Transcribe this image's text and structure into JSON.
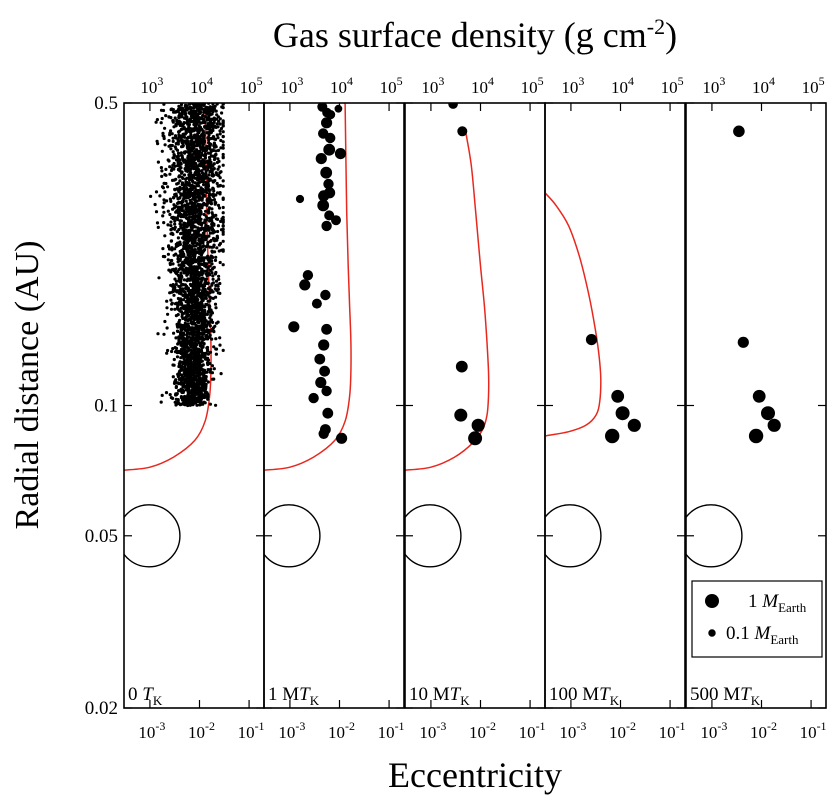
{
  "figure": {
    "top_title": "Gas surface density (g cm",
    "top_title_sup": "-2",
    "top_title_end": ")",
    "left_ylabel": "Radial distance (AU)",
    "bottom_xlabel": "Eccentricity"
  },
  "chart_data": {
    "type": "scatter",
    "y_axis": {
      "label": "Radial distance (AU)",
      "scale": "log",
      "range": [
        0.02,
        0.5
      ],
      "ticks": [
        {
          "value": 0.5,
          "label": "0.5"
        },
        {
          "value": 0.1,
          "label": "0.1"
        },
        {
          "value": 0.05,
          "label": "0.05"
        },
        {
          "value": 0.02,
          "label": "0.02"
        }
      ]
    },
    "x_axis_bottom": {
      "label": "Eccentricity",
      "scale": "log",
      "range": [
        0.0003,
        0.2
      ],
      "ticks": [
        {
          "value": 0.001,
          "base": "10",
          "exp": "-3"
        },
        {
          "value": 0.01,
          "base": "10",
          "exp": "-2"
        },
        {
          "value": 0.1,
          "base": "10",
          "exp": "-1"
        }
      ]
    },
    "x_axis_top": {
      "label": "Gas surface density (g cm^-2)",
      "scale": "log",
      "range": [
        300,
        200000
      ],
      "ticks": [
        {
          "value": 1000,
          "base": "10",
          "exp": "3"
        },
        {
          "value": 10000,
          "base": "10",
          "exp": "4"
        },
        {
          "value": 100000,
          "base": "10",
          "exp": "5"
        }
      ]
    },
    "legend": {
      "position": "bottom-right",
      "items": [
        {
          "name": "1 M",
          "sub": "Earth",
          "mass_earth": 1.0
        },
        {
          "name": "0.1 M",
          "sub": "Earth",
          "mass_earth": 0.1
        }
      ]
    },
    "star_marker": {
      "radius_au": 0.05,
      "center_e": 0.001
    },
    "panels": [
      {
        "label_pre": "0 ",
        "label_it": "T",
        "label_sub": "K",
        "gas_profile": {
          "color": "#e8281e",
          "sigma": [
            1000,
            3000,
            8000,
            13000,
            16000,
            17000,
            17000,
            16000,
            15000,
            14000,
            13000
          ],
          "r": [
            0.072,
            0.076,
            0.083,
            0.092,
            0.105,
            0.12,
            0.14,
            0.17,
            0.21,
            0.28,
            0.5
          ]
        },
        "cloud": {
          "r_min": 0.1,
          "r_max": 0.5,
          "e_center": 0.007,
          "e_spread_dex": 0.22,
          "mass_earth": 0.05,
          "count": 3200
        },
        "planets": []
      },
      {
        "label_pre": "1 M",
        "label_it": "T",
        "label_sub": "K",
        "gas_profile": {
          "color": "#e8281e",
          "sigma": [
            1000,
            3000,
            8000,
            13000,
            16000,
            17000,
            17000,
            16000,
            15000,
            14000,
            13000
          ],
          "r": [
            0.072,
            0.076,
            0.083,
            0.092,
            0.105,
            0.12,
            0.14,
            0.17,
            0.21,
            0.28,
            0.5
          ]
        },
        "planets": [
          {
            "e": 0.0045,
            "r": 0.49,
            "m": 0.35
          },
          {
            "e": 0.0056,
            "r": 0.475,
            "m": 0.3
          },
          {
            "e": 0.0066,
            "r": 0.47,
            "m": 0.25
          },
          {
            "e": 0.0095,
            "r": 0.485,
            "m": 0.12
          },
          {
            "e": 0.0055,
            "r": 0.45,
            "m": 0.5
          },
          {
            "e": 0.0047,
            "r": 0.425,
            "m": 0.4
          },
          {
            "e": 0.0065,
            "r": 0.415,
            "m": 0.4
          },
          {
            "e": 0.0062,
            "r": 0.39,
            "m": 0.6
          },
          {
            "e": 0.0105,
            "r": 0.382,
            "m": 0.5
          },
          {
            "e": 0.0043,
            "r": 0.372,
            "m": 0.5
          },
          {
            "e": 0.0054,
            "r": 0.345,
            "m": 0.6
          },
          {
            "e": 0.006,
            "r": 0.325,
            "m": 0.4
          },
          {
            "e": 0.0063,
            "r": 0.31,
            "m": 0.5
          },
          {
            "e": 0.0048,
            "r": 0.305,
            "m": 0.5
          },
          {
            "e": 0.0047,
            "r": 0.29,
            "m": 0.6
          },
          {
            "e": 0.0062,
            "r": 0.275,
            "m": 0.35
          },
          {
            "e": 0.0085,
            "r": 0.268,
            "m": 0.35
          },
          {
            "e": 0.0055,
            "r": 0.26,
            "m": 0.4
          },
          {
            "e": 0.0016,
            "r": 0.3,
            "m": 0.15
          },
          {
            "e": 0.0023,
            "r": 0.2,
            "m": 0.4
          },
          {
            "e": 0.002,
            "r": 0.19,
            "m": 0.5
          },
          {
            "e": 0.0052,
            "r": 0.18,
            "m": 0.4
          },
          {
            "e": 0.0035,
            "r": 0.172,
            "m": 0.35
          },
          {
            "e": 0.0012,
            "r": 0.152,
            "m": 0.5
          },
          {
            "e": 0.0055,
            "r": 0.15,
            "m": 0.45
          },
          {
            "e": 0.0048,
            "r": 0.138,
            "m": 0.5
          },
          {
            "e": 0.004,
            "r": 0.128,
            "m": 0.45
          },
          {
            "e": 0.005,
            "r": 0.12,
            "m": 0.45
          },
          {
            "e": 0.0042,
            "r": 0.113,
            "m": 0.5
          },
          {
            "e": 0.0055,
            "r": 0.108,
            "m": 0.4
          },
          {
            "e": 0.003,
            "r": 0.104,
            "m": 0.4
          },
          {
            "e": 0.0058,
            "r": 0.096,
            "m": 0.45
          },
          {
            "e": 0.0052,
            "r": 0.088,
            "m": 0.45
          },
          {
            "e": 0.0048,
            "r": 0.086,
            "m": 0.4
          },
          {
            "e": 0.011,
            "r": 0.084,
            "m": 0.5
          }
        ]
      },
      {
        "label_pre": "10 M",
        "label_it": "T",
        "label_sub": "K",
        "gas_profile": {
          "color": "#e8281e",
          "sigma": [
            1000,
            3000,
            7000,
            11000,
            13500,
            14500,
            14500,
            13500,
            12000,
            10000,
            8000,
            6500,
            5000
          ],
          "r": [
            0.072,
            0.076,
            0.082,
            0.088,
            0.095,
            0.105,
            0.12,
            0.14,
            0.17,
            0.21,
            0.28,
            0.36,
            0.43
          ]
        },
        "planets": [
          {
            "e": 0.0028,
            "r": 0.497,
            "m": 0.3
          },
          {
            "e": 0.0043,
            "r": 0.43,
            "m": 0.35
          },
          {
            "e": 0.0042,
            "r": 0.123,
            "m": 0.6
          },
          {
            "e": 0.004,
            "r": 0.095,
            "m": 0.8
          },
          {
            "e": 0.009,
            "r": 0.09,
            "m": 0.85
          },
          {
            "e": 0.0078,
            "r": 0.084,
            "m": 1.0
          }
        ]
      },
      {
        "label_pre": "100 M",
        "label_it": "T",
        "label_sub": "K",
        "gas_profile": {
          "color": "#e8281e",
          "sigma": [
            300,
            900,
            2000,
            3200,
            3800,
            4000,
            3700,
            3100,
            2300,
            1500,
            900,
            500,
            300
          ],
          "r": [
            0.085,
            0.087,
            0.09,
            0.095,
            0.102,
            0.115,
            0.13,
            0.15,
            0.18,
            0.22,
            0.26,
            0.29,
            0.31
          ]
        },
        "planets": [
          {
            "e": 0.0026,
            "r": 0.142,
            "m": 0.5
          },
          {
            "e": 0.0088,
            "r": 0.105,
            "m": 0.75
          },
          {
            "e": 0.011,
            "r": 0.096,
            "m": 1.0
          },
          {
            "e": 0.019,
            "r": 0.09,
            "m": 0.85
          },
          {
            "e": 0.0068,
            "r": 0.085,
            "m": 1.1
          }
        ]
      },
      {
        "label_pre": "500 M",
        "label_it": "T",
        "label_sub": "K",
        "gas_profile": null,
        "planets": [
          {
            "e": 0.0035,
            "r": 0.43,
            "m": 0.55
          },
          {
            "e": 0.0043,
            "r": 0.14,
            "m": 0.5
          },
          {
            "e": 0.009,
            "r": 0.105,
            "m": 0.75
          },
          {
            "e": 0.0135,
            "r": 0.096,
            "m": 1.0
          },
          {
            "e": 0.018,
            "r": 0.09,
            "m": 0.85
          },
          {
            "e": 0.0078,
            "r": 0.085,
            "m": 1.1
          }
        ]
      }
    ]
  }
}
